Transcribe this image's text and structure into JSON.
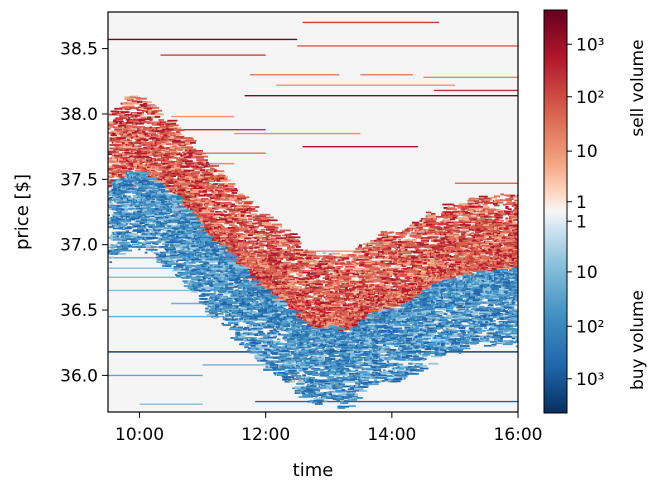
{
  "chart_data": {
    "type": "heatmap",
    "title": "",
    "xlabel": "time",
    "ylabel": "price [$]",
    "xlim": [
      "09:30",
      "16:00"
    ],
    "ylim": [
      35.72,
      38.78
    ],
    "x_ticks": [
      "10:00",
      "12:00",
      "14:00",
      "16:00"
    ],
    "y_ticks": [
      "36.0",
      "36.5",
      "37.0",
      "37.5",
      "38.0",
      "38.5"
    ],
    "grid": false,
    "background_color": "#f5f5f5",
    "colorbar": {
      "position": "right",
      "sell_label": "sell volume",
      "buy_label": "buy volume",
      "sell_ticks": [
        "10³",
        "10²",
        "10",
        "1"
      ],
      "buy_ticks": [
        "1",
        "10",
        "10²",
        "10³"
      ],
      "sell_colors": [
        "#67001f",
        "#b2182b",
        "#d6604d",
        "#f4a582",
        "#fddbc7",
        "#f7f7f7"
      ],
      "buy_colors": [
        "#f7f7f7",
        "#d1e5f0",
        "#92c5de",
        "#4393c3",
        "#2166ac",
        "#053061"
      ]
    },
    "mid_price_path": [
      [
        "09:30",
        37.45
      ],
      [
        "09:45",
        37.55
      ],
      [
        "10:00",
        37.55
      ],
      [
        "10:15",
        37.45
      ],
      [
        "10:30",
        37.38
      ],
      [
        "10:45",
        37.22
      ],
      [
        "11:00",
        37.05
      ],
      [
        "11:15",
        36.98
      ],
      [
        "11:30",
        36.85
      ],
      [
        "11:45",
        36.72
      ],
      [
        "12:00",
        36.62
      ],
      [
        "12:15",
        36.55
      ],
      [
        "12:30",
        36.42
      ],
      [
        "12:45",
        36.35
      ],
      [
        "13:00",
        36.38
      ],
      [
        "13:15",
        36.32
      ],
      [
        "13:30",
        36.42
      ],
      [
        "13:45",
        36.5
      ],
      [
        "14:00",
        36.52
      ],
      [
        "14:15",
        36.58
      ],
      [
        "14:30",
        36.65
      ],
      [
        "14:45",
        36.72
      ],
      [
        "15:00",
        36.75
      ],
      [
        "15:15",
        36.78
      ],
      [
        "15:30",
        36.8
      ],
      [
        "15:45",
        36.8
      ],
      [
        "16:00",
        36.82
      ]
    ],
    "sell_orders": [
      {
        "price": 38.7,
        "start": "12:35",
        "end": "14:45",
        "volume": 300
      },
      {
        "price": 38.57,
        "start": "09:30",
        "end": "12:30",
        "volume": 3000
      },
      {
        "price": 38.52,
        "start": "12:30",
        "end": "16:00",
        "volume": 150
      },
      {
        "price": 38.45,
        "start": "10:20",
        "end": "12:00",
        "volume": 200
      },
      {
        "price": 38.3,
        "start": "11:45",
        "end": "13:10",
        "volume": 60
      },
      {
        "price": 38.3,
        "start": "13:30",
        "end": "14:20",
        "volume": 60
      },
      {
        "price": 38.28,
        "start": "14:30",
        "end": "16:00",
        "volume": 60
      },
      {
        "price": 38.22,
        "start": "12:10",
        "end": "15:00",
        "volume": 40
      },
      {
        "price": 38.18,
        "start": "14:40",
        "end": "16:00",
        "volume": 400
      },
      {
        "price": 38.14,
        "start": "11:40",
        "end": "16:00",
        "volume": 2500
      },
      {
        "price": 37.98,
        "start": "10:30",
        "end": "11:30",
        "volume": 40
      },
      {
        "price": 37.88,
        "start": "10:10",
        "end": "12:00",
        "volume": 500
      },
      {
        "price": 37.85,
        "start": "11:30",
        "end": "13:30",
        "volume": 50
      },
      {
        "price": 37.75,
        "start": "12:35",
        "end": "14:25",
        "volume": 800
      },
      {
        "price": 37.7,
        "start": "11:00",
        "end": "12:00",
        "volume": 100
      },
      {
        "price": 37.62,
        "start": "10:10",
        "end": "11:30",
        "volume": 50
      },
      {
        "price": 37.47,
        "start": "15:00",
        "end": "16:00",
        "volume": 100
      },
      {
        "price": 37.45,
        "start": "09:30",
        "end": "10:40",
        "volume": 400
      },
      {
        "price": 37.38,
        "start": "10:00",
        "end": "11:30",
        "volume": 120
      },
      {
        "price": 37.3,
        "start": "09:30",
        "end": "10:30",
        "volume": 200
      },
      {
        "price": 37.1,
        "start": "10:30",
        "end": "11:30",
        "volume": 30
      },
      {
        "price": 36.95,
        "start": "11:00",
        "end": "16:00",
        "volume": 40
      },
      {
        "price": 36.9,
        "start": "13:30",
        "end": "16:00",
        "volume": 60
      },
      {
        "price": 36.85,
        "start": "11:30",
        "end": "16:00",
        "volume": 30
      },
      {
        "price": 36.8,
        "start": "12:00",
        "end": "15:30",
        "volume": 120
      },
      {
        "price": 36.72,
        "start": "12:30",
        "end": "14:30",
        "volume": 40
      }
    ],
    "buy_orders": [
      {
        "price": 37.2,
        "start": "09:30",
        "end": "10:30",
        "volume": 80
      },
      {
        "price": 37.05,
        "start": "09:30",
        "end": "11:00",
        "volume": 60
      },
      {
        "price": 36.98,
        "start": "09:30",
        "end": "11:30",
        "volume": 40
      },
      {
        "price": 36.9,
        "start": "09:30",
        "end": "11:45",
        "volume": 60
      },
      {
        "price": 36.82,
        "start": "09:30",
        "end": "12:00",
        "volume": 40
      },
      {
        "price": 36.75,
        "start": "09:30",
        "end": "12:00",
        "volume": 40
      },
      {
        "price": 36.65,
        "start": "09:30",
        "end": "11:30",
        "volume": 40
      },
      {
        "price": 36.55,
        "start": "10:30",
        "end": "13:00",
        "volume": 60
      },
      {
        "price": 36.45,
        "start": "09:30",
        "end": "14:30",
        "volume": 60
      },
      {
        "price": 36.38,
        "start": "12:00",
        "end": "16:00",
        "volume": 40
      },
      {
        "price": 36.3,
        "start": "12:30",
        "end": "16:00",
        "volume": 40
      },
      {
        "price": 36.18,
        "start": "09:30",
        "end": "16:00",
        "volume": 2000
      },
      {
        "price": 36.08,
        "start": "11:00",
        "end": "13:00",
        "volume": 60
      },
      {
        "price": 36.0,
        "start": "09:30",
        "end": "11:00",
        "volume": 80
      },
      {
        "price": 35.95,
        "start": "12:30",
        "end": "13:30",
        "volume": 40
      },
      {
        "price": 35.8,
        "start": "11:50",
        "end": "16:00",
        "volume": 800
      },
      {
        "price": 35.78,
        "start": "10:00",
        "end": "11:00",
        "volume": 40
      }
    ]
  }
}
